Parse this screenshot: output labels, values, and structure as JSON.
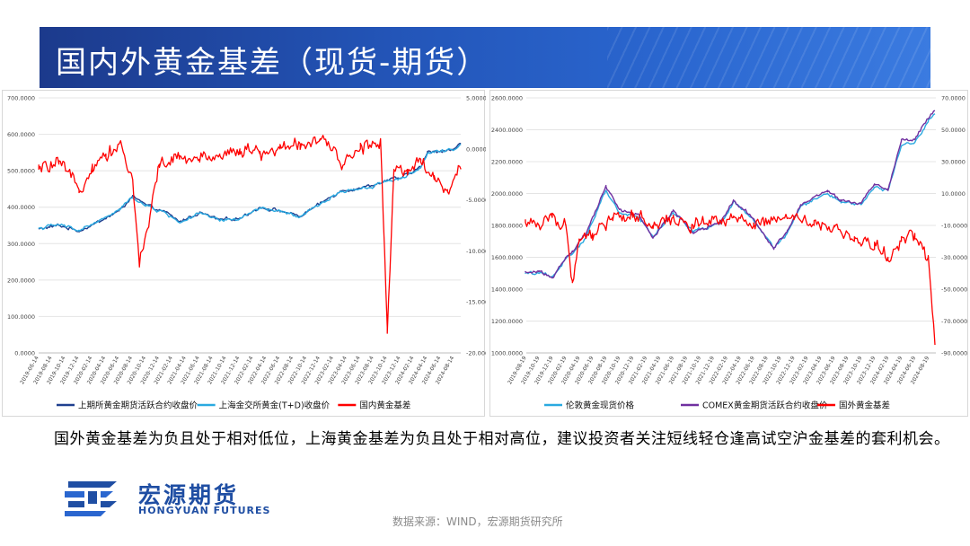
{
  "title": "国内外黄金基差（现货-期货）",
  "note": "国外黄金基差为负且处于相对低位，上海黄金基差为负且处于相对高位，建议投资者关注短线轻仓逢高试空沪金基差的套利机会。",
  "logo": {
    "cn": "宏源期货",
    "en": "HONGYUAN FUTURES"
  },
  "source": "数据来源：WIND，宏源期货研究所",
  "colors": {
    "title_bg": "#2355b8",
    "dark_blue": "#1f3f8f",
    "light_blue": "#2aa9e0",
    "red": "#ff0000",
    "purple": "#7030a0"
  },
  "chart_data": [
    {
      "type": "line",
      "title": "",
      "x_ticks": [
        "2019-06-14",
        "2019-08-14",
        "2019-10-14",
        "2019-12-14",
        "2020-02-14",
        "2020-04-14",
        "2020-06-14",
        "2020-08-14",
        "2020-10-14",
        "2020-12-14",
        "2021-02-14",
        "2021-04-14",
        "2021-06-14",
        "2021-08-14",
        "2021-10-14",
        "2021-12-14",
        "2022-02-14",
        "2022-04-14",
        "2022-06-14",
        "2022-08-14",
        "2022-10-14",
        "2022-12-14",
        "2023-02-14",
        "2023-04-14",
        "2023-06-14",
        "2023-08-14",
        "2023-10-14",
        "2023-12-14",
        "2024-02-14",
        "2024-04-14",
        "2024-06-14",
        "2024-08-14"
      ],
      "y_left": {
        "min": 0,
        "max": 700,
        "ticks": [
          "0.0000",
          "100.0000",
          "200.0000",
          "300.0000",
          "400.0000",
          "500.0000",
          "600.0000",
          "700.0000"
        ]
      },
      "y_right": {
        "min": -20,
        "max": 5,
        "ticks": [
          "-20.0000",
          "-15.0000",
          "-10.0000",
          "-5.0000",
          "0.0000",
          "5.0000"
        ]
      },
      "series": [
        {
          "name": "上期所黄金期货活跃合约收盘价",
          "axis": "left",
          "color": "#1f3f8f",
          "dates": [
            "2019-06",
            "2019-09",
            "2019-12",
            "2020-03",
            "2020-06",
            "2020-08",
            "2020-10",
            "2021-01",
            "2021-03",
            "2021-06",
            "2021-09",
            "2021-12",
            "2022-03",
            "2022-06",
            "2022-09",
            "2022-12",
            "2023-03",
            "2023-05",
            "2023-08",
            "2023-10",
            "2023-12",
            "2024-03",
            "2024-04",
            "2024-06",
            "2024-08",
            "2024-09"
          ],
          "values": [
            340,
            350,
            335,
            360,
            390,
            430,
            405,
            385,
            360,
            385,
            365,
            370,
            400,
            390,
            375,
            410,
            445,
            450,
            460,
            475,
            480,
            510,
            550,
            555,
            560,
            575
          ]
        },
        {
          "name": "上海金交所黄金(T+D)收盘价",
          "axis": "left",
          "color": "#2aa9e0",
          "dates": [
            "2019-06",
            "2019-09",
            "2019-12",
            "2020-03",
            "2020-06",
            "2020-08",
            "2020-10",
            "2021-01",
            "2021-03",
            "2021-06",
            "2021-09",
            "2021-12",
            "2022-03",
            "2022-06",
            "2022-09",
            "2022-12",
            "2023-03",
            "2023-05",
            "2023-08",
            "2023-10",
            "2023-12",
            "2024-03",
            "2024-04",
            "2024-06",
            "2024-08",
            "2024-09"
          ],
          "values": [
            342,
            352,
            337,
            362,
            392,
            428,
            403,
            383,
            358,
            383,
            363,
            368,
            398,
            388,
            373,
            408,
            443,
            448,
            458,
            473,
            478,
            508,
            548,
            553,
            557,
            572
          ]
        },
        {
          "name": "国内黄金基差",
          "axis": "right",
          "color": "#ff0000",
          "dates": [
            "2019-06",
            "2019-09",
            "2019-12",
            "2020-02",
            "2020-04",
            "2020-06",
            "2020-08",
            "2020-09",
            "2020-12",
            "2021-03",
            "2021-06",
            "2021-09",
            "2021-12",
            "2022-03",
            "2022-06",
            "2022-09",
            "2022-12",
            "2023-03",
            "2023-06",
            "2023-09",
            "2023-10",
            "2023-11",
            "2024-01",
            "2024-03",
            "2024-05",
            "2024-07",
            "2024-09"
          ],
          "values": [
            -2,
            -1.5,
            -4,
            -1.5,
            -0.5,
            0.5,
            -3,
            -11.5,
            -1.5,
            -1,
            -1,
            -0.5,
            0,
            -0.5,
            0,
            0.5,
            1,
            -1.5,
            0,
            1,
            -17.5,
            -2,
            -2,
            -1,
            -3,
            -4,
            -2
          ]
        }
      ]
    },
    {
      "type": "line",
      "title": "",
      "x_ticks": [
        "2019-08-19",
        "2019-10-19",
        "2019-12-19",
        "2020-02-19",
        "2020-04-19",
        "2020-06-19",
        "2020-08-19",
        "2020-10-19",
        "2020-12-19",
        "2021-02-19",
        "2021-04-19",
        "2021-06-19",
        "2021-08-19",
        "2021-10-19",
        "2021-12-19",
        "2022-02-19",
        "2022-04-19",
        "2022-06-19",
        "2022-08-19",
        "2022-10-19",
        "2022-12-19",
        "2023-02-19",
        "2023-04-19",
        "2023-06-19",
        "2023-08-19",
        "2023-10-19",
        "2023-12-19",
        "2024-02-19",
        "2024-04-19",
        "2024-06-19",
        "2024-08-19"
      ],
      "y_left": {
        "min": 1000,
        "max": 2600,
        "ticks": [
          "1000.0000",
          "1200.0000",
          "1400.0000",
          "1600.0000",
          "1800.0000",
          "2000.0000",
          "2200.0000",
          "2400.0000",
          "2600.0000"
        ]
      },
      "y_right": {
        "min": -90,
        "max": 70,
        "ticks": [
          "-90.0000",
          "-70.0000",
          "-50.0000",
          "-30.0000",
          "-10.0000",
          "10.0000",
          "30.0000",
          "50.0000",
          "70.0000"
        ]
      },
      "series": [
        {
          "name": "伦敦黄金现货价格",
          "axis": "left",
          "color": "#2aa9e0",
          "dates": [
            "2019-08",
            "2019-10",
            "2019-12",
            "2020-02",
            "2020-03",
            "2020-05",
            "2020-08",
            "2020-10",
            "2021-01",
            "2021-03",
            "2021-06",
            "2021-09",
            "2022-01",
            "2022-03",
            "2022-06",
            "2022-09",
            "2022-11",
            "2023-01",
            "2023-05",
            "2023-07",
            "2023-10",
            "2023-12",
            "2024-02",
            "2024-04",
            "2024-06",
            "2024-08",
            "2024-09"
          ],
          "values": [
            1500,
            1500,
            1480,
            1590,
            1620,
            1720,
            2020,
            1880,
            1850,
            1730,
            1880,
            1760,
            1810,
            1950,
            1830,
            1660,
            1750,
            1920,
            2000,
            1950,
            1930,
            2040,
            2020,
            2300,
            2320,
            2450,
            2500
          ]
        },
        {
          "name": "COMEX黄金期货活跃合约收盘价",
          "axis": "left",
          "color": "#7030a0",
          "dates": [
            "2019-08",
            "2019-10",
            "2019-12",
            "2020-02",
            "2020-03",
            "2020-05",
            "2020-08",
            "2020-10",
            "2021-01",
            "2021-03",
            "2021-06",
            "2021-09",
            "2022-01",
            "2022-03",
            "2022-06",
            "2022-09",
            "2022-11",
            "2023-01",
            "2023-05",
            "2023-07",
            "2023-10",
            "2023-12",
            "2024-02",
            "2024-04",
            "2024-06",
            "2024-08",
            "2024-09"
          ],
          "values": [
            1510,
            1510,
            1470,
            1600,
            1640,
            1740,
            2050,
            1900,
            1860,
            1720,
            1890,
            1750,
            1820,
            1960,
            1840,
            1650,
            1760,
            1930,
            2020,
            1960,
            1940,
            2060,
            2030,
            2330,
            2340,
            2470,
            2520
          ]
        },
        {
          "name": "国外黄金基差",
          "axis": "right",
          "color": "#ff0000",
          "dates": [
            "2019-08",
            "2019-10",
            "2019-12",
            "2020-02",
            "2020-03",
            "2020-04",
            "2020-06",
            "2020-09",
            "2020-12",
            "2021-03",
            "2021-06",
            "2021-09",
            "2021-12",
            "2022-03",
            "2022-06",
            "2022-09",
            "2022-12",
            "2023-03",
            "2023-06",
            "2023-09",
            "2023-12",
            "2024-02",
            "2024-04",
            "2024-06",
            "2024-08",
            "2024-09"
          ],
          "values": [
            -8,
            -10,
            -5,
            -10,
            -45,
            -20,
            -15,
            -5,
            -5,
            -10,
            -5,
            -10,
            -5,
            -5,
            -10,
            -5,
            -5,
            -10,
            -10,
            -20,
            -25,
            -30,
            -20,
            -15,
            -30,
            -85
          ]
        }
      ]
    }
  ]
}
